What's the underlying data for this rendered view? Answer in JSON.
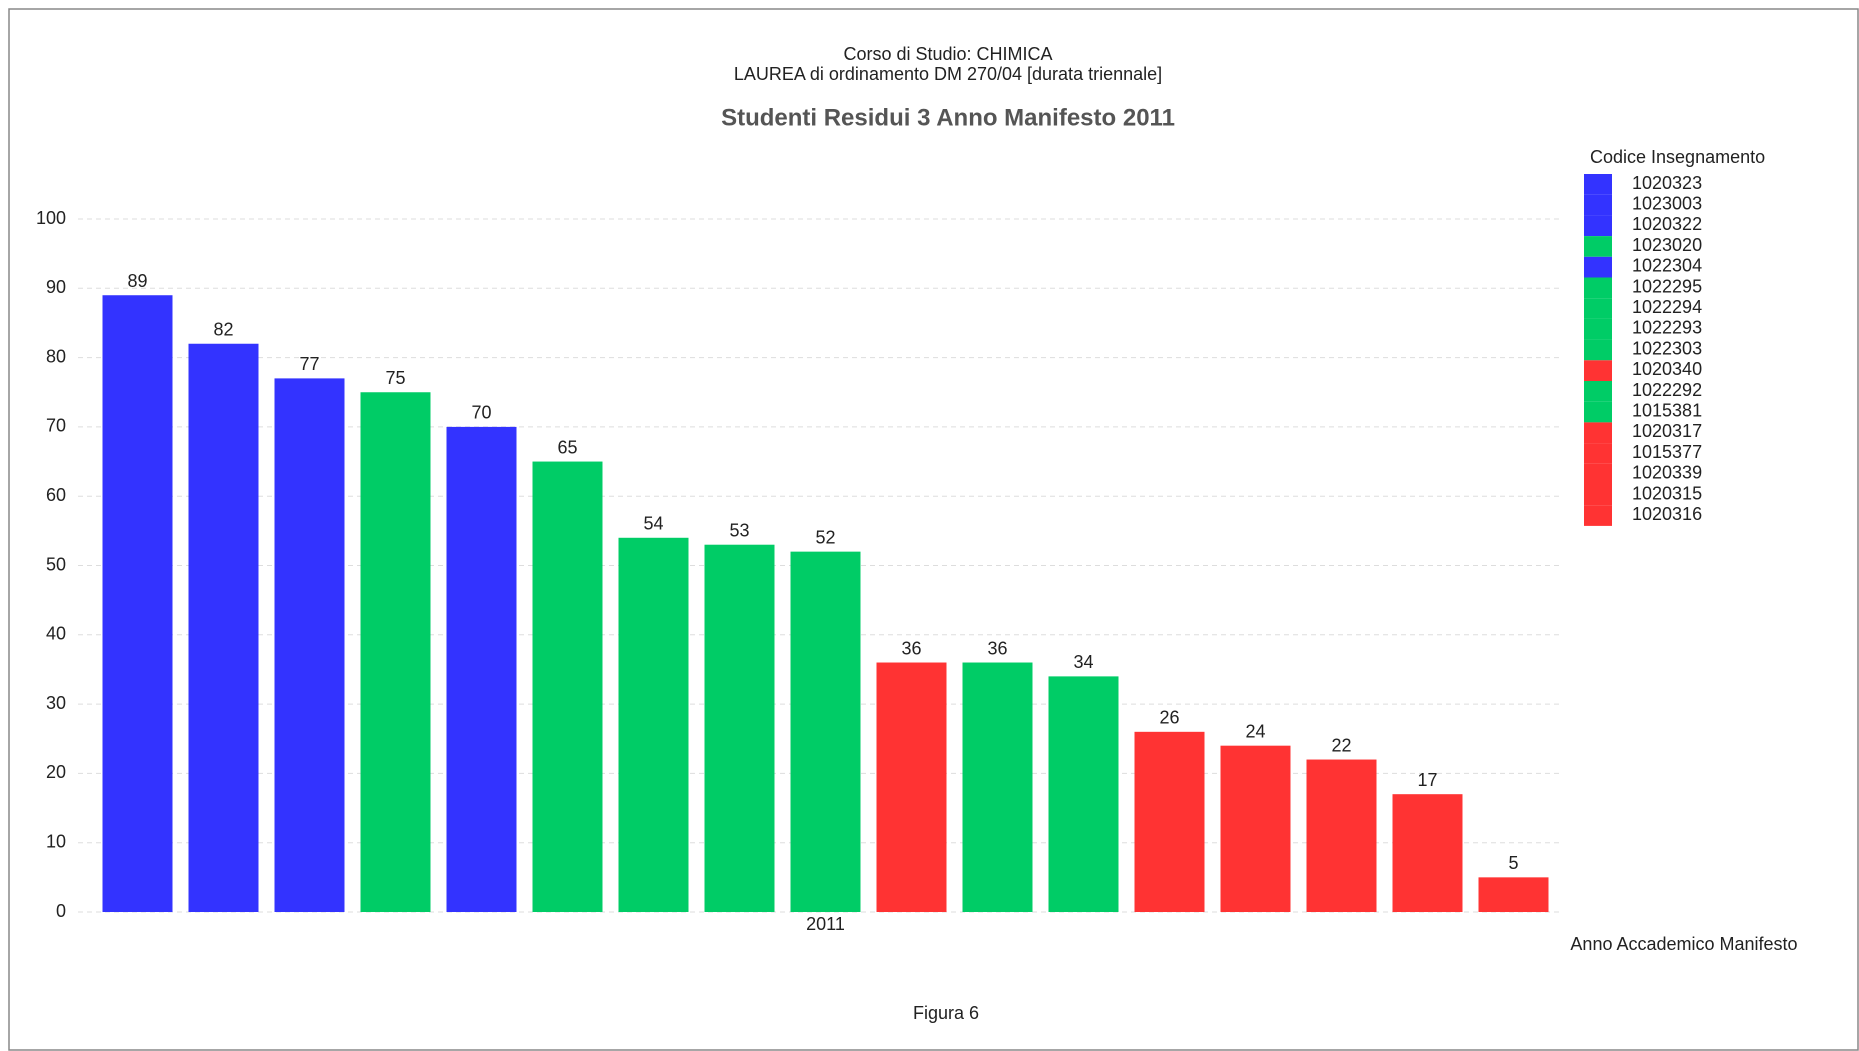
{
  "chart_data": {
    "type": "bar",
    "title_lines": [
      "Corso di Studio: CHIMICA",
      "LAUREA di ordinamento DM 270/04 [durata triennale]"
    ],
    "title": "Studenti Residui 3 Anno Manifesto 2011",
    "x_label": "Anno Accademico Manifesto",
    "caption": "Figura 6",
    "legend_title": "Codice Insegnamento",
    "legend_position": "right",
    "grid": true,
    "categories": [
      "2011"
    ],
    "ylim": [
      0,
      100
    ],
    "yticks": [
      0,
      10,
      20,
      30,
      40,
      50,
      60,
      70,
      80,
      90,
      100
    ],
    "series": [
      {
        "name": "1020323",
        "color": "#3333ff",
        "values": [
          89
        ]
      },
      {
        "name": "1023003",
        "color": "#3333ff",
        "values": [
          82
        ]
      },
      {
        "name": "1020322",
        "color": "#3333ff",
        "values": [
          77
        ]
      },
      {
        "name": "1023020",
        "color": "#00cc66",
        "values": [
          75
        ]
      },
      {
        "name": "1022304",
        "color": "#3333ff",
        "values": [
          70
        ]
      },
      {
        "name": "1022295",
        "color": "#00cc66",
        "values": [
          65
        ]
      },
      {
        "name": "1022294",
        "color": "#00cc66",
        "values": [
          54
        ]
      },
      {
        "name": "1022293",
        "color": "#00cc66",
        "values": [
          53
        ]
      },
      {
        "name": "1022303",
        "color": "#00cc66",
        "values": [
          52
        ]
      },
      {
        "name": "1020340",
        "color": "#ff3333",
        "values": [
          36
        ]
      },
      {
        "name": "1022292",
        "color": "#00cc66",
        "values": [
          36
        ]
      },
      {
        "name": "1015381",
        "color": "#00cc66",
        "values": [
          34
        ]
      },
      {
        "name": "1020317",
        "color": "#ff3333",
        "values": [
          26
        ]
      },
      {
        "name": "1015377",
        "color": "#ff3333",
        "values": [
          24
        ]
      },
      {
        "name": "1020339",
        "color": "#ff3333",
        "values": [
          22
        ]
      },
      {
        "name": "1020315",
        "color": "#ff3333",
        "values": [
          17
        ]
      },
      {
        "name": "1020316",
        "color": "#ff3333",
        "values": [
          5
        ]
      }
    ]
  }
}
